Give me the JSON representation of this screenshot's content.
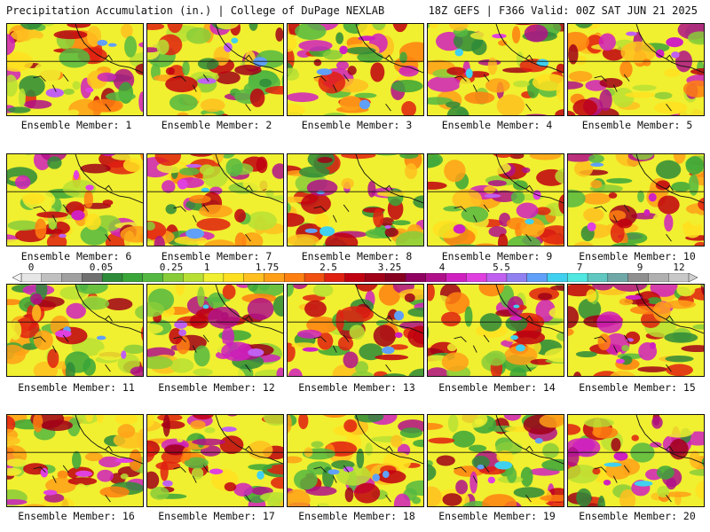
{
  "header": {
    "title_left": "Precipitation Accumulation (in.) | College of DuPage NEXLAB",
    "title_right": "18Z GEFS | F366 Valid: 00Z SAT JUN 21 2025"
  },
  "colorbar": {
    "tick_labels": [
      "0",
      "0.05",
      "0.25",
      "1",
      "1.75",
      "2.5",
      "3.25",
      "4",
      "5.5",
      "7",
      "9",
      "12"
    ],
    "colors": [
      "#e6e6e6",
      "#c0c0c0",
      "#a0a0a0",
      "#707070",
      "#2e8b3a",
      "#3aa63a",
      "#55b842",
      "#88cc3a",
      "#b8e034",
      "#f0f030",
      "#ffe020",
      "#ffc020",
      "#ffa018",
      "#ff8010",
      "#f05010",
      "#e02010",
      "#c00010",
      "#a00018",
      "#880020",
      "#900060",
      "#b0108a",
      "#d020c0",
      "#e040e0",
      "#c060f0",
      "#9080f0",
      "#60a0f8",
      "#40d0f0",
      "#50e8e0",
      "#60c8c0",
      "#70a8a8",
      "#909090",
      "#b0b0b0",
      "#c8c8c8"
    ]
  },
  "members": [
    {
      "label": "Ensemble Member: 1"
    },
    {
      "label": "Ensemble Member: 2"
    },
    {
      "label": "Ensemble Member: 3"
    },
    {
      "label": "Ensemble Member: 4"
    },
    {
      "label": "Ensemble Member: 5"
    },
    {
      "label": "Ensemble Member: 6"
    },
    {
      "label": "Ensemble Member: 7"
    },
    {
      "label": "Ensemble Member: 8"
    },
    {
      "label": "Ensemble Member: 9"
    },
    {
      "label": "Ensemble Member: 10"
    },
    {
      "label": "Ensemble Member: 11"
    },
    {
      "label": "Ensemble Member: 12"
    },
    {
      "label": "Ensemble Member: 13"
    },
    {
      "label": "Ensemble Member: 14"
    },
    {
      "label": "Ensemble Member: 15"
    },
    {
      "label": "Ensemble Member: 16"
    },
    {
      "label": "Ensemble Member: 17"
    },
    {
      "label": "Ensemble Member: 18"
    },
    {
      "label": "Ensemble Member: 19"
    },
    {
      "label": "Ensemble Member: 20"
    }
  ]
}
